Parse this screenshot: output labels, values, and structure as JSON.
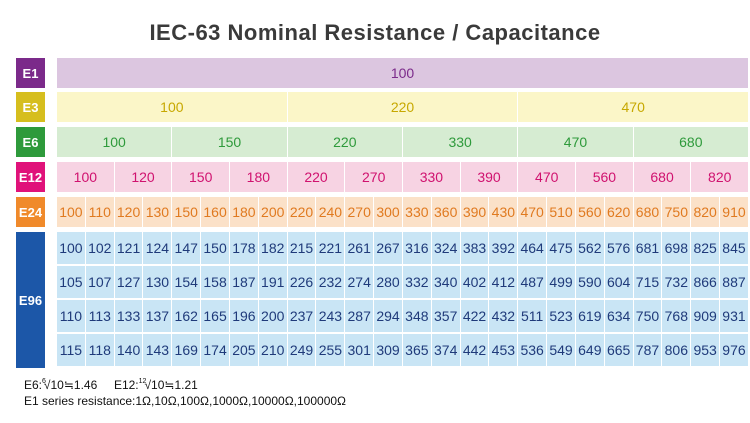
{
  "title": "IEC-63 Nominal Resistance / Capacitance",
  "rows": [
    {
      "label": "E1",
      "label_bg": "#7b2a8a",
      "band_bg": "#dcc6e0",
      "text_color": "#7b2a8a",
      "values": [
        "100"
      ]
    },
    {
      "label": "E3",
      "label_bg": "#d6be1e",
      "band_bg": "#fbf6c8",
      "text_color": "#c7a800",
      "values": [
        "100",
        "220",
        "470"
      ]
    },
    {
      "label": "E6",
      "label_bg": "#2e9a3b",
      "band_bg": "#d6ecd2",
      "text_color": "#2e9a3b",
      "values": [
        "100",
        "150",
        "220",
        "330",
        "470",
        "680"
      ]
    },
    {
      "label": "E12",
      "label_bg": "#e0127a",
      "band_bg": "#f7d3e3",
      "text_color": "#d0126f",
      "values": [
        "100",
        "120",
        "150",
        "180",
        "220",
        "270",
        "330",
        "390",
        "470",
        "560",
        "680",
        "820"
      ]
    },
    {
      "label": "E24",
      "label_bg": "#f08a2b",
      "band_bg": "#fbe1c8",
      "text_color": "#e07a20",
      "values": [
        "100",
        "110",
        "120",
        "130",
        "150",
        "160",
        "180",
        "200",
        "220",
        "240",
        "270",
        "300",
        "330",
        "360",
        "390",
        "430",
        "470",
        "510",
        "560",
        "620",
        "680",
        "750",
        "820",
        "910"
      ]
    }
  ],
  "e96": {
    "label": "E96",
    "label_bg": "#1c57a8",
    "rows": [
      [
        "100",
        "102",
        "121",
        "124",
        "147",
        "150",
        "178",
        "182",
        "215",
        "221",
        "261",
        "267",
        "316",
        "324",
        "383",
        "392",
        "464",
        "475",
        "562",
        "576",
        "681",
        "698",
        "825",
        "845"
      ],
      [
        "105",
        "107",
        "127",
        "130",
        "154",
        "158",
        "187",
        "191",
        "226",
        "232",
        "274",
        "280",
        "332",
        "340",
        "402",
        "412",
        "487",
        "499",
        "590",
        "604",
        "715",
        "732",
        "866",
        "887"
      ],
      [
        "110",
        "113",
        "133",
        "137",
        "162",
        "165",
        "196",
        "200",
        "237",
        "243",
        "287",
        "294",
        "348",
        "357",
        "422",
        "432",
        "511",
        "523",
        "619",
        "634",
        "750",
        "768",
        "909",
        "931"
      ],
      [
        "115",
        "118",
        "140",
        "143",
        "169",
        "174",
        "205",
        "210",
        "249",
        "255",
        "301",
        "309",
        "365",
        "374",
        "442",
        "453",
        "536",
        "549",
        "649",
        "665",
        "787",
        "806",
        "953",
        "976"
      ]
    ]
  },
  "notes": {
    "e6_prefix": "E6:",
    "e6_index": "6",
    "e6_rest": "√10≒1.46",
    "e12_prefix": "E12:",
    "e12_index": "12",
    "e12_rest": "√10≒1.21",
    "series": "E1  series resistance:1Ω,10Ω,100Ω,1000Ω,10000Ω,100000Ω"
  }
}
